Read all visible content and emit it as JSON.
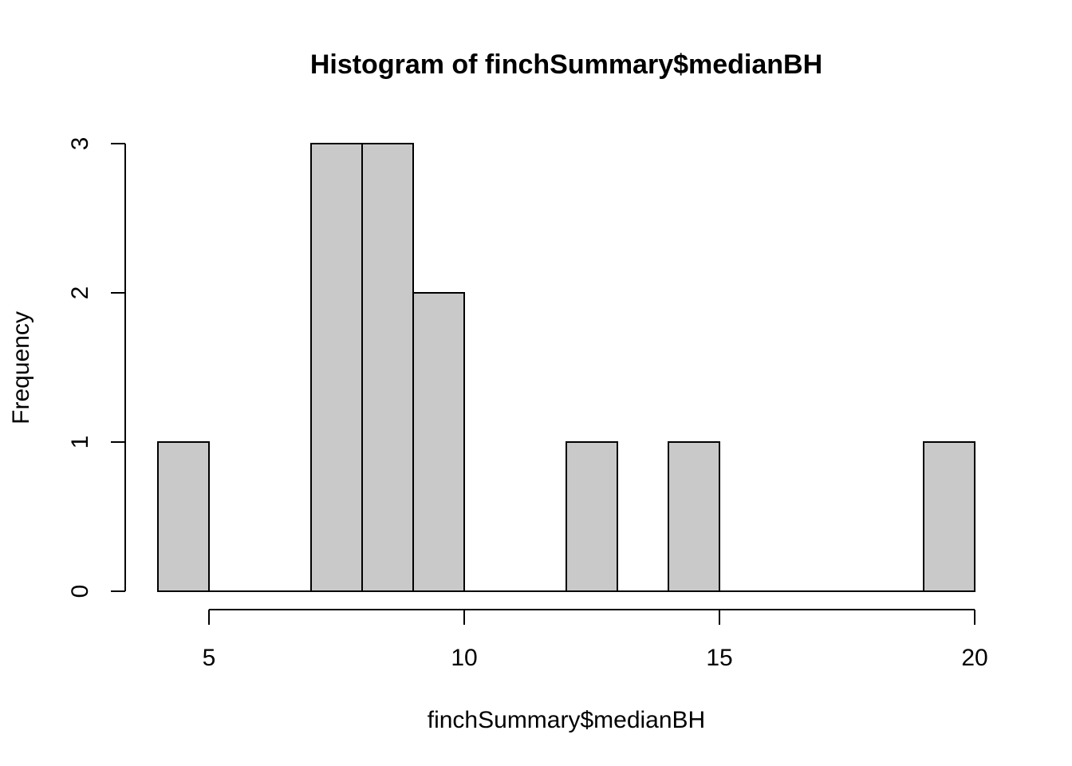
{
  "chart_data": {
    "type": "bar",
    "title": "Histogram of finchSummary$medianBH",
    "xlabel": "finchSummary$medianBH",
    "ylabel": "Frequency",
    "bins": [
      {
        "start": 4,
        "end": 5,
        "count": 1
      },
      {
        "start": 5,
        "end": 6,
        "count": 0
      },
      {
        "start": 6,
        "end": 7,
        "count": 0
      },
      {
        "start": 7,
        "end": 8,
        "count": 3
      },
      {
        "start": 8,
        "end": 9,
        "count": 3
      },
      {
        "start": 9,
        "end": 10,
        "count": 2
      },
      {
        "start": 10,
        "end": 11,
        "count": 0
      },
      {
        "start": 11,
        "end": 12,
        "count": 0
      },
      {
        "start": 12,
        "end": 13,
        "count": 1
      },
      {
        "start": 13,
        "end": 14,
        "count": 0
      },
      {
        "start": 14,
        "end": 15,
        "count": 1
      },
      {
        "start": 15,
        "end": 16,
        "count": 0
      },
      {
        "start": 16,
        "end": 17,
        "count": 0
      },
      {
        "start": 17,
        "end": 18,
        "count": 0
      },
      {
        "start": 18,
        "end": 19,
        "count": 0
      },
      {
        "start": 19,
        "end": 20,
        "count": 1
      }
    ],
    "xticks": [
      5,
      10,
      15,
      20
    ],
    "xtick_labels": [
      "5",
      "10",
      "15",
      "20"
    ],
    "yticks": [
      0,
      1,
      2,
      3
    ],
    "ytick_labels": [
      "0",
      "1",
      "2",
      "3"
    ],
    "xlim": [
      4,
      20
    ],
    "ylim": [
      0,
      3
    ],
    "grid": false,
    "bar_color": "#c9c9c9",
    "edge_color": "#000000"
  }
}
